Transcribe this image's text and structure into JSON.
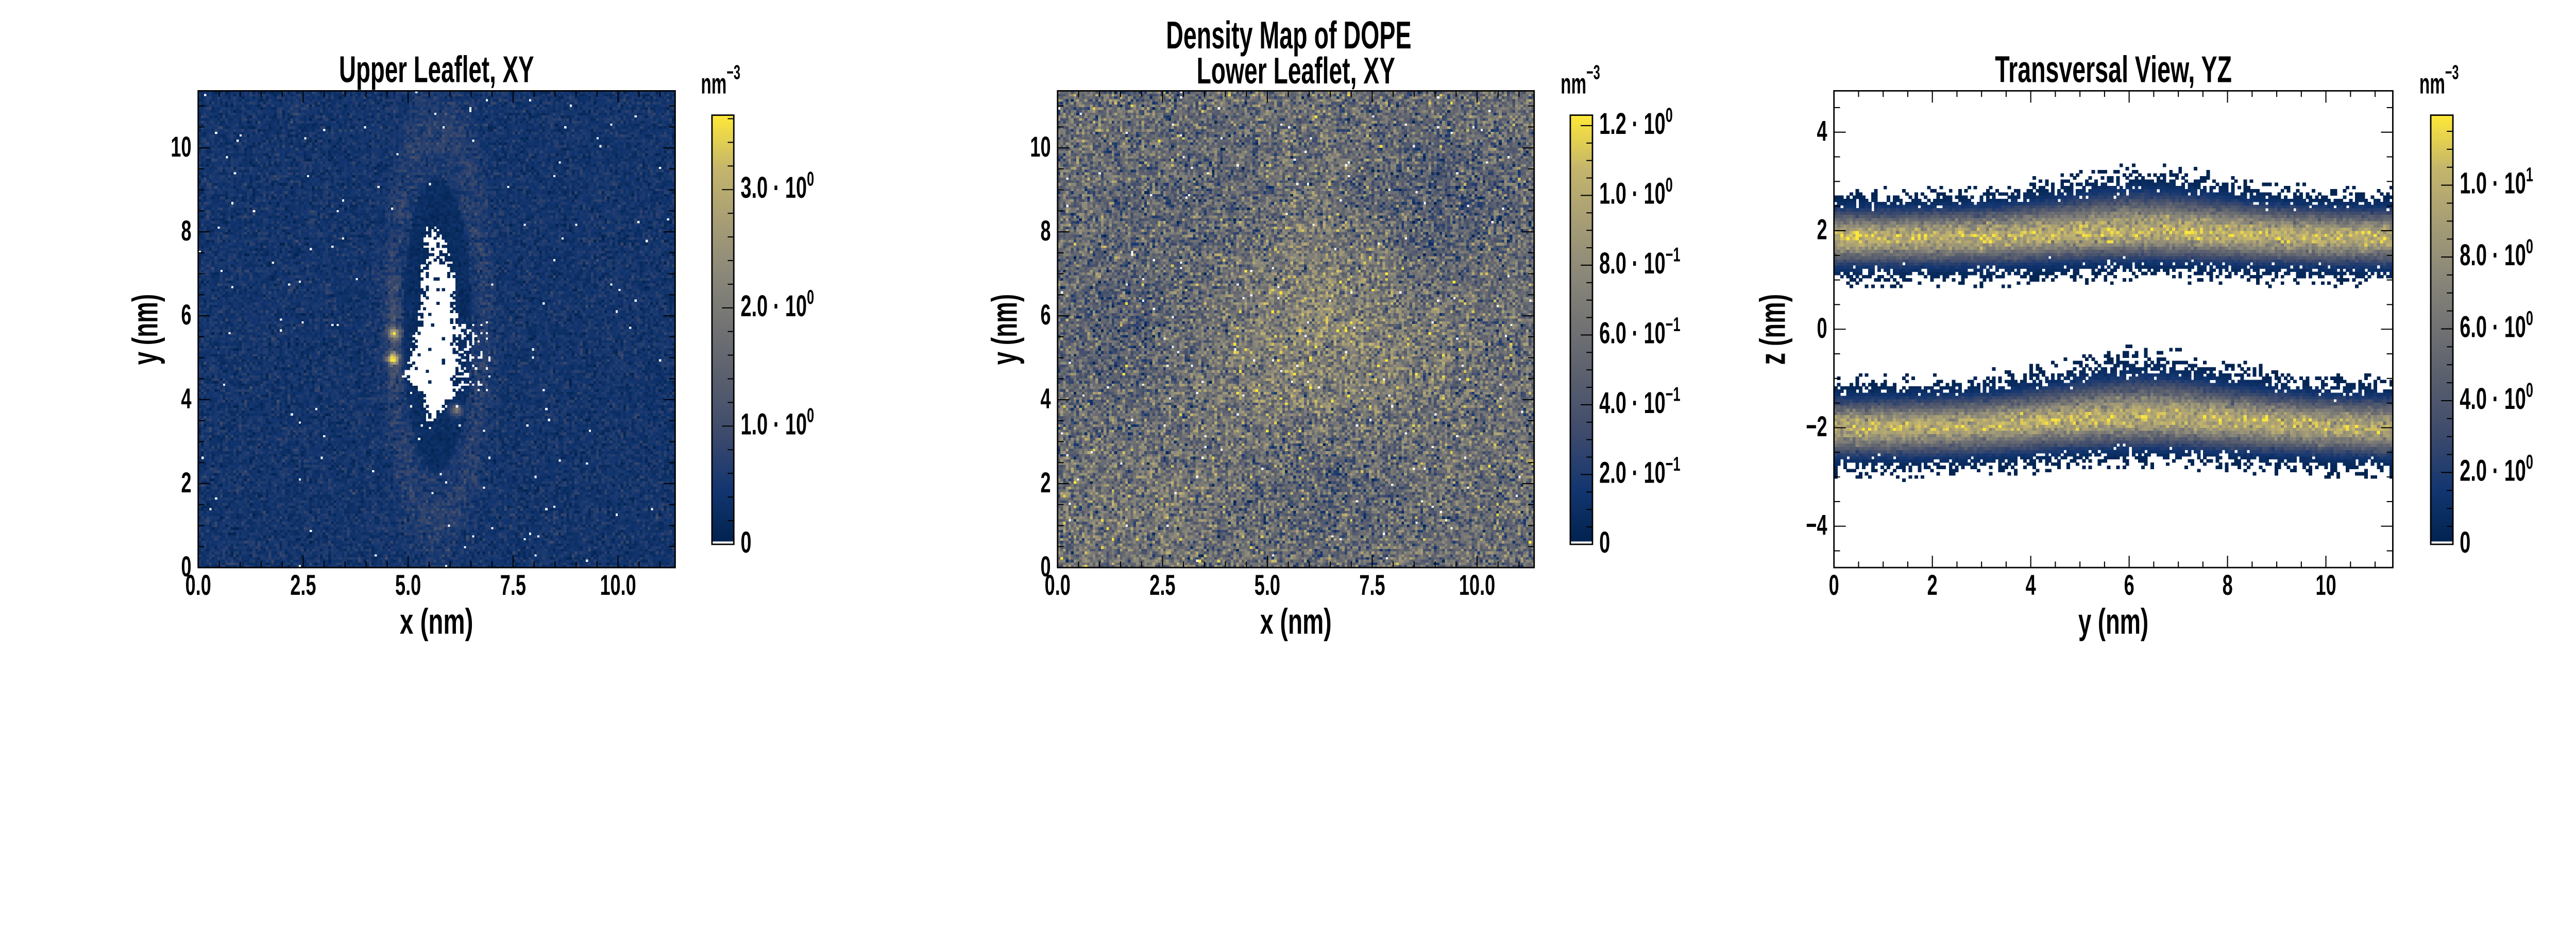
{
  "figure": {
    "suptitle": "Density Map of DOPE"
  },
  "colormap": {
    "name": "cividis",
    "under_color": "#ffffff",
    "stops": [
      "#00224e",
      "#123570",
      "#3b496c",
      "#575d6d",
      "#707173",
      "#8a8779",
      "#a69d75",
      "#c4b56c",
      "#fee838"
    ]
  },
  "chart_data": [
    {
      "type": "heatmap",
      "title": "Upper Leaflet, XY",
      "xlabel": "x (nm)",
      "ylabel": "y (nm)",
      "xlim": [
        0,
        11.36
      ],
      "ylim": [
        0,
        11.36
      ],
      "xticks": [
        {
          "value": 0,
          "label": "0.0"
        },
        {
          "value": 2.5,
          "label": "2.5"
        },
        {
          "value": 5,
          "label": "5.0"
        },
        {
          "value": 7.5,
          "label": "7.5"
        },
        {
          "value": 10,
          "label": "10.0"
        }
      ],
      "xminor_step": 0.5,
      "yticks": [
        {
          "value": 0,
          "label": "0"
        },
        {
          "value": 2,
          "label": "2"
        },
        {
          "value": 4,
          "label": "4"
        },
        {
          "value": 6,
          "label": "6"
        },
        {
          "value": 8,
          "label": "8"
        },
        {
          "value": 10,
          "label": "10"
        }
      ],
      "yminor_step": 0.5,
      "colorbar": {
        "label_base": "nm",
        "label_exp": "−3",
        "vmin": 0,
        "vmax": 3.63,
        "minor_step": 0.2,
        "ticks": [
          {
            "value": 0,
            "base": "0",
            "exp": ""
          },
          {
            "value": 1,
            "base": "1.0 · 10",
            "exp": "0"
          },
          {
            "value": 2,
            "base": "2.0 · 10",
            "exp": "0"
          },
          {
            "value": 3,
            "base": "3.0 · 10",
            "exp": "0"
          }
        ]
      },
      "features": {
        "background_mean": 0.45,
        "background_sd": 0.17,
        "empty_bin_fraction": 0.004,
        "void_outline_y_xleft_xright": [
          [
            3.45,
            5.5,
            5.6
          ],
          [
            3.55,
            5.42,
            5.66
          ],
          [
            4.16,
            5.31,
            6.19
          ],
          [
            4.57,
            4.85,
            6.25
          ],
          [
            4.77,
            4.97,
            6.22
          ],
          [
            5.58,
            5.14,
            6.19
          ],
          [
            6.4,
            5.31,
            6.15
          ],
          [
            7.02,
            5.31,
            6.1
          ],
          [
            7.63,
            5.36,
            5.99
          ],
          [
            8.12,
            5.42,
            5.68
          ]
        ],
        "hotspots": [
          {
            "x": 4.65,
            "y": 4.98,
            "value": 3.5,
            "sigma": 0.09
          },
          {
            "x": 4.67,
            "y": 5.58,
            "value": 2.2,
            "sigma": 0.1
          },
          {
            "x": 6.15,
            "y": 3.75,
            "value": 1.7,
            "sigma": 0.1
          }
        ]
      }
    },
    {
      "type": "heatmap",
      "title": "Lower Leaflet, XY",
      "xlabel": "x (nm)",
      "ylabel": "y (nm)",
      "xlim": [
        0,
        11.36
      ],
      "ylim": [
        0,
        11.36
      ],
      "xticks": [
        {
          "value": 0,
          "label": "0.0"
        },
        {
          "value": 2.5,
          "label": "2.5"
        },
        {
          "value": 5,
          "label": "5.0"
        },
        {
          "value": 7.5,
          "label": "7.5"
        },
        {
          "value": 10,
          "label": "10.0"
        }
      ],
      "xminor_step": 0.5,
      "yticks": [
        {
          "value": 0,
          "label": "0"
        },
        {
          "value": 2,
          "label": "2"
        },
        {
          "value": 4,
          "label": "4"
        },
        {
          "value": 6,
          "label": "6"
        },
        {
          "value": 8,
          "label": "8"
        },
        {
          "value": 10,
          "label": "10"
        }
      ],
      "yminor_step": 0.5,
      "colorbar": {
        "label_base": "nm",
        "label_exp": "−3",
        "vmin": 0,
        "vmax": 1.23,
        "minor_step": 0.05,
        "ticks": [
          {
            "value": 0,
            "base": "0",
            "exp": ""
          },
          {
            "value": 0.2,
            "base": "2.0 · 10",
            "exp": "−1"
          },
          {
            "value": 0.4,
            "base": "4.0 · 10",
            "exp": "−1"
          },
          {
            "value": 0.6,
            "base": "6.0 · 10",
            "exp": "−1"
          },
          {
            "value": 0.8,
            "base": "8.0 · 10",
            "exp": "−1"
          },
          {
            "value": 1.0,
            "base": "1.0 · 10",
            "exp": "0"
          },
          {
            "value": 1.2,
            "base": "1.2 · 10",
            "exp": "0"
          }
        ]
      },
      "features": {
        "background_mean": 0.58,
        "background_sd": 0.2,
        "empty_bin_fraction": 0.005,
        "regions": [
          {
            "x": 6.3,
            "y": 5.6,
            "sigma": 1.7,
            "delta": 0.2
          },
          {
            "x": 9.0,
            "y": 8.7,
            "sigma": 1.2,
            "delta": -0.16
          },
          {
            "x": 1.5,
            "y": 5.8,
            "sigma": 1.3,
            "delta": -0.12
          },
          {
            "x": 6.6,
            "y": 1.9,
            "sigma": 1.1,
            "delta": -0.1
          },
          {
            "x": 3.5,
            "y": 9.0,
            "sigma": 1.2,
            "delta": -0.08
          },
          {
            "x": 2.0,
            "y": 1.2,
            "sigma": 1.2,
            "delta": 0.08
          }
        ]
      }
    },
    {
      "type": "heatmap",
      "title": "Transversal View, YZ",
      "xlabel": "y (nm)",
      "ylabel": "z (nm)",
      "xlim": [
        0,
        11.36
      ],
      "ylim": [
        -4.84,
        4.84
      ],
      "xticks": [
        {
          "value": 0,
          "label": "0"
        },
        {
          "value": 2,
          "label": "2"
        },
        {
          "value": 4,
          "label": "4"
        },
        {
          "value": 6,
          "label": "6"
        },
        {
          "value": 8,
          "label": "8"
        },
        {
          "value": 10,
          "label": "10"
        }
      ],
      "xminor_step": 0.5,
      "yticks": [
        {
          "value": -4,
          "label": "−4"
        },
        {
          "value": -2,
          "label": "−2"
        },
        {
          "value": 0,
          "label": "0"
        },
        {
          "value": 2,
          "label": "2"
        },
        {
          "value": 4,
          "label": "4"
        }
      ],
      "yminor_step": 0.5,
      "colorbar": {
        "label_base": "nm",
        "label_exp": "−3",
        "vmin": 0,
        "vmax": 11.95,
        "minor_step": 0.5,
        "ticks": [
          {
            "value": 0,
            "base": "0",
            "exp": ""
          },
          {
            "value": 2,
            "base": "2.0 · 10",
            "exp": "0"
          },
          {
            "value": 4,
            "base": "4.0 · 10",
            "exp": "0"
          },
          {
            "value": 6,
            "base": "6.0 · 10",
            "exp": "0"
          },
          {
            "value": 8,
            "base": "8.0 · 10",
            "exp": "0"
          },
          {
            "value": 10,
            "base": "1.0 · 10",
            "exp": "1"
          }
        ]
      },
      "features": {
        "bands": [
          {
            "name": "upper",
            "center_z": 1.86,
            "sigma": 0.32,
            "peak": 10.0,
            "bump_y": 6.3,
            "bump_dz": 0.12,
            "bump_sigma": 1.8
          },
          {
            "name": "lower",
            "center_z": -2.0,
            "sigma": 0.33,
            "peak": 9.8,
            "bump_y": 6.3,
            "bump_dz": 0.2,
            "bump_sigma": 2.0
          }
        ]
      }
    }
  ]
}
